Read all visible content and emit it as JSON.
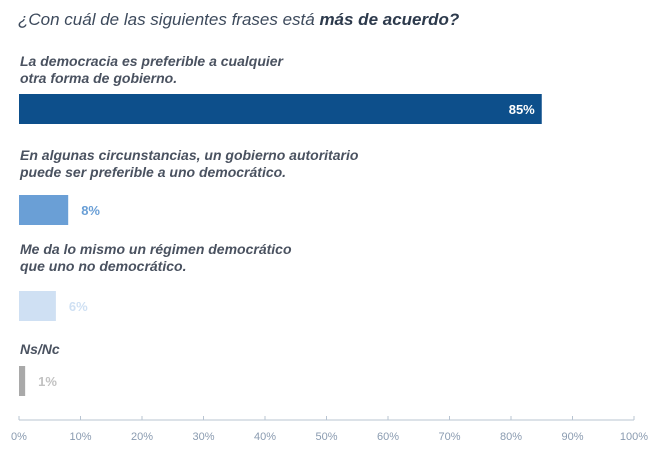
{
  "question": {
    "prefix": "¿Con cuál de las siguientes frases está ",
    "emphasis": "más de acuerdo?"
  },
  "chart_data": {
    "type": "bar",
    "orientation": "horizontal",
    "title": "¿Con cuál de las siguientes frases está más de acuerdo?",
    "categories": [
      [
        "La democracia es preferible a cualquier",
        "otra forma de gobierno."
      ],
      [
        "En algunas circunstancias, un gobierno autoritario",
        "puede ser preferible a uno democrático."
      ],
      [
        "Me da lo mismo un régimen democrático",
        "que uno no democrático."
      ],
      [
        "Ns/Nc"
      ]
    ],
    "values": [
      85,
      8,
      6,
      1
    ],
    "value_labels": [
      "85%",
      "8%",
      "6%",
      "1%"
    ],
    "bar_colors": [
      "#0d4f8b",
      "#6a9fd6",
      "#cfe0f3",
      "#a9a9a9"
    ],
    "label_colors": [
      "#ffffff",
      "#6a9fd6",
      "#cfe0f3",
      "#c2c2c2"
    ],
    "xlim": [
      0,
      100
    ],
    "xticks": [
      0,
      10,
      20,
      30,
      40,
      50,
      60,
      70,
      80,
      90,
      100
    ],
    "xtick_labels": [
      "0%",
      "10%",
      "20%",
      "30%",
      "40%",
      "50%",
      "60%",
      "70%",
      "80%",
      "90%",
      "100%"
    ],
    "axis_color": "#b8c4d2"
  }
}
